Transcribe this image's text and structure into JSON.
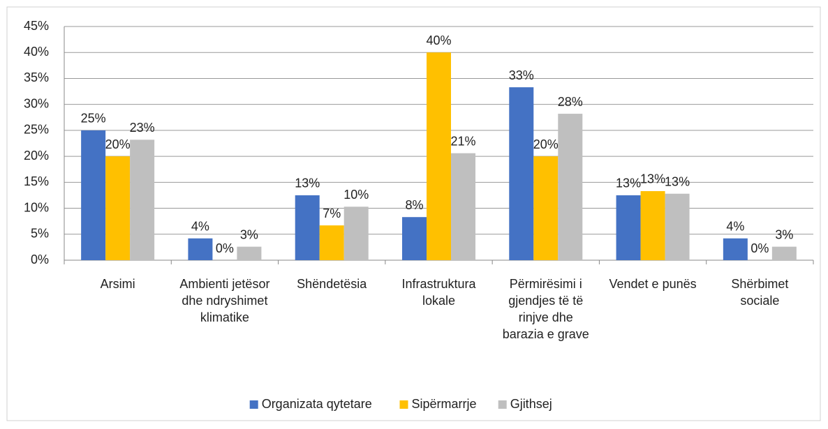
{
  "chart_data": {
    "type": "bar",
    "categories": [
      "Arsimi",
      "Ambienti jetësor dhe ndryshimet klimatike",
      "Shëndetësia",
      "Infrastruktura lokale",
      "Përmirësimi i gjendjes të të rinjve dhe barazia e grave",
      "Vendet e punës",
      "Shërbimet sociale"
    ],
    "series": [
      {
        "name": "Organizata qytetare",
        "color": "#4472c4",
        "values": [
          25,
          4.2,
          12.5,
          8.3,
          33.3,
          12.5,
          4.2
        ],
        "value_labels": [
          "25%",
          "4%",
          "13%",
          "8%",
          "33%",
          "13%",
          "4%"
        ]
      },
      {
        "name": "Sipërmarrje",
        "color": "#ffc000",
        "values": [
          20,
          0,
          6.7,
          40,
          20,
          13.3,
          0
        ],
        "value_labels": [
          "20%",
          "0%",
          "7%",
          "40%",
          "20%",
          "13%",
          "0%"
        ]
      },
      {
        "name": "Gjithsej",
        "color": "#bfbfbf",
        "values": [
          23.2,
          2.6,
          10.3,
          20.6,
          28.2,
          12.8,
          2.6
        ],
        "value_labels": [
          "23%",
          "3%",
          "10%",
          "21%",
          "28%",
          "13%",
          "3%"
        ]
      }
    ],
    "ylim": [
      0,
      45
    ],
    "yticks": [
      {
        "value": 0,
        "label": "0%"
      },
      {
        "value": 5,
        "label": "5%"
      },
      {
        "value": 10,
        "label": "10%"
      },
      {
        "value": 15,
        "label": "15%"
      },
      {
        "value": 20,
        "label": "20%"
      },
      {
        "value": 25,
        "label": "25%"
      },
      {
        "value": 30,
        "label": "30%"
      },
      {
        "value": 35,
        "label": "35%"
      },
      {
        "value": 40,
        "label": "40%"
      },
      {
        "value": 45,
        "label": "45%"
      }
    ],
    "grid": true,
    "legend": "bottom"
  }
}
